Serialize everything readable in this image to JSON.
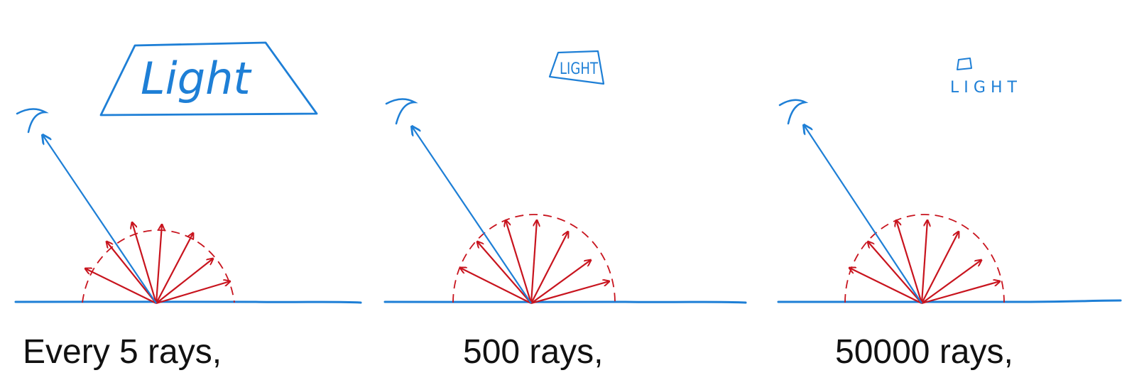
{
  "colors": {
    "blue": "#1e7fd6",
    "red": "#c8141e",
    "text": "#111111"
  },
  "panels": [
    {
      "light_label": "Light",
      "caption": "Every 5 rays,"
    },
    {
      "light_label": "LIGHT",
      "caption": "500 rays,"
    },
    {
      "light_label": "LIGHT",
      "caption": "50000 rays,"
    }
  ],
  "icons": {
    "eye": "eye-icon",
    "light": "light-source-icon"
  }
}
